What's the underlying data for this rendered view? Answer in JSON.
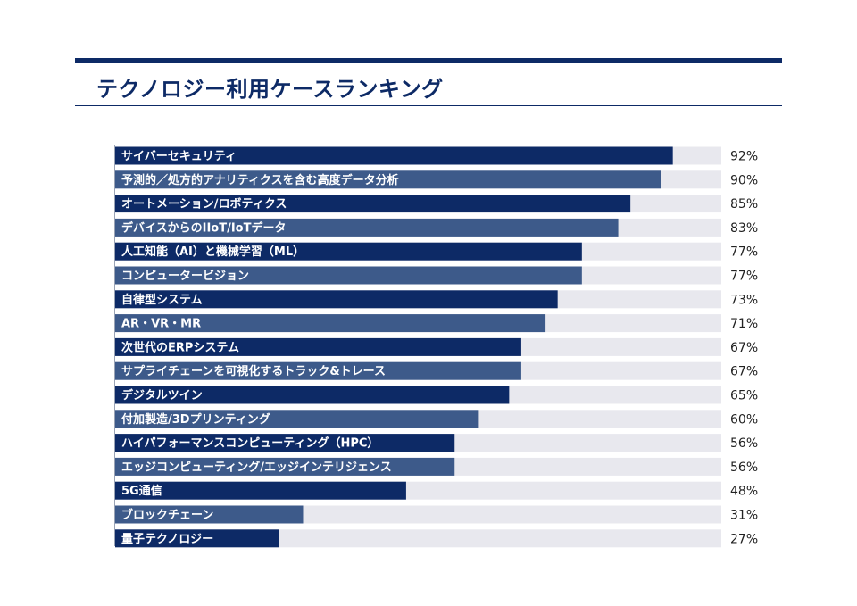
{
  "header": {
    "title": "テクノロジー利用ケースランキング"
  },
  "colors": {
    "dark": "#0d2a66",
    "medium": "#3d5a8a",
    "track": "#e8e8ee",
    "text": "#222222",
    "rule": "#0d2a66"
  },
  "chart_data": {
    "type": "bar",
    "orientation": "horizontal",
    "title": "",
    "xlabel": "",
    "ylabel": "",
    "xlim": [
      0,
      100
    ],
    "unit": "%",
    "categories": [
      "サイバーセキュリティ",
      "予測的／処方的アナリティクスを含む高度データ分析",
      "オートメーション/ロボティクス",
      "デバイスからのIIoT/IoTデータ",
      "人工知能（AI）と機械学習（ML）",
      "コンピュータービジョン",
      "自律型システム",
      "AR・VR・MR",
      "次世代のERPシステム",
      "サプライチェーンを可視化するトラック&トレース",
      "デジタルツイン",
      "付加製造/3Dプリンティング",
      "ハイパフォーマンスコンピューティング（HPC）",
      "エッジコンピューティング/エッジインテリジェンス",
      "5G通信",
      "ブロックチェーン",
      "量子テクノロジー"
    ],
    "values": [
      92,
      90,
      85,
      83,
      77,
      77,
      73,
      71,
      67,
      67,
      65,
      60,
      56,
      56,
      48,
      31,
      27
    ],
    "value_labels": [
      "92%",
      "90%",
      "85%",
      "83%",
      "77%",
      "77%",
      "73%",
      "71%",
      "67%",
      "67%",
      "65%",
      "60%",
      "56%",
      "56%",
      "48%",
      "31%",
      "27%"
    ],
    "grid": false,
    "legend": "none"
  }
}
